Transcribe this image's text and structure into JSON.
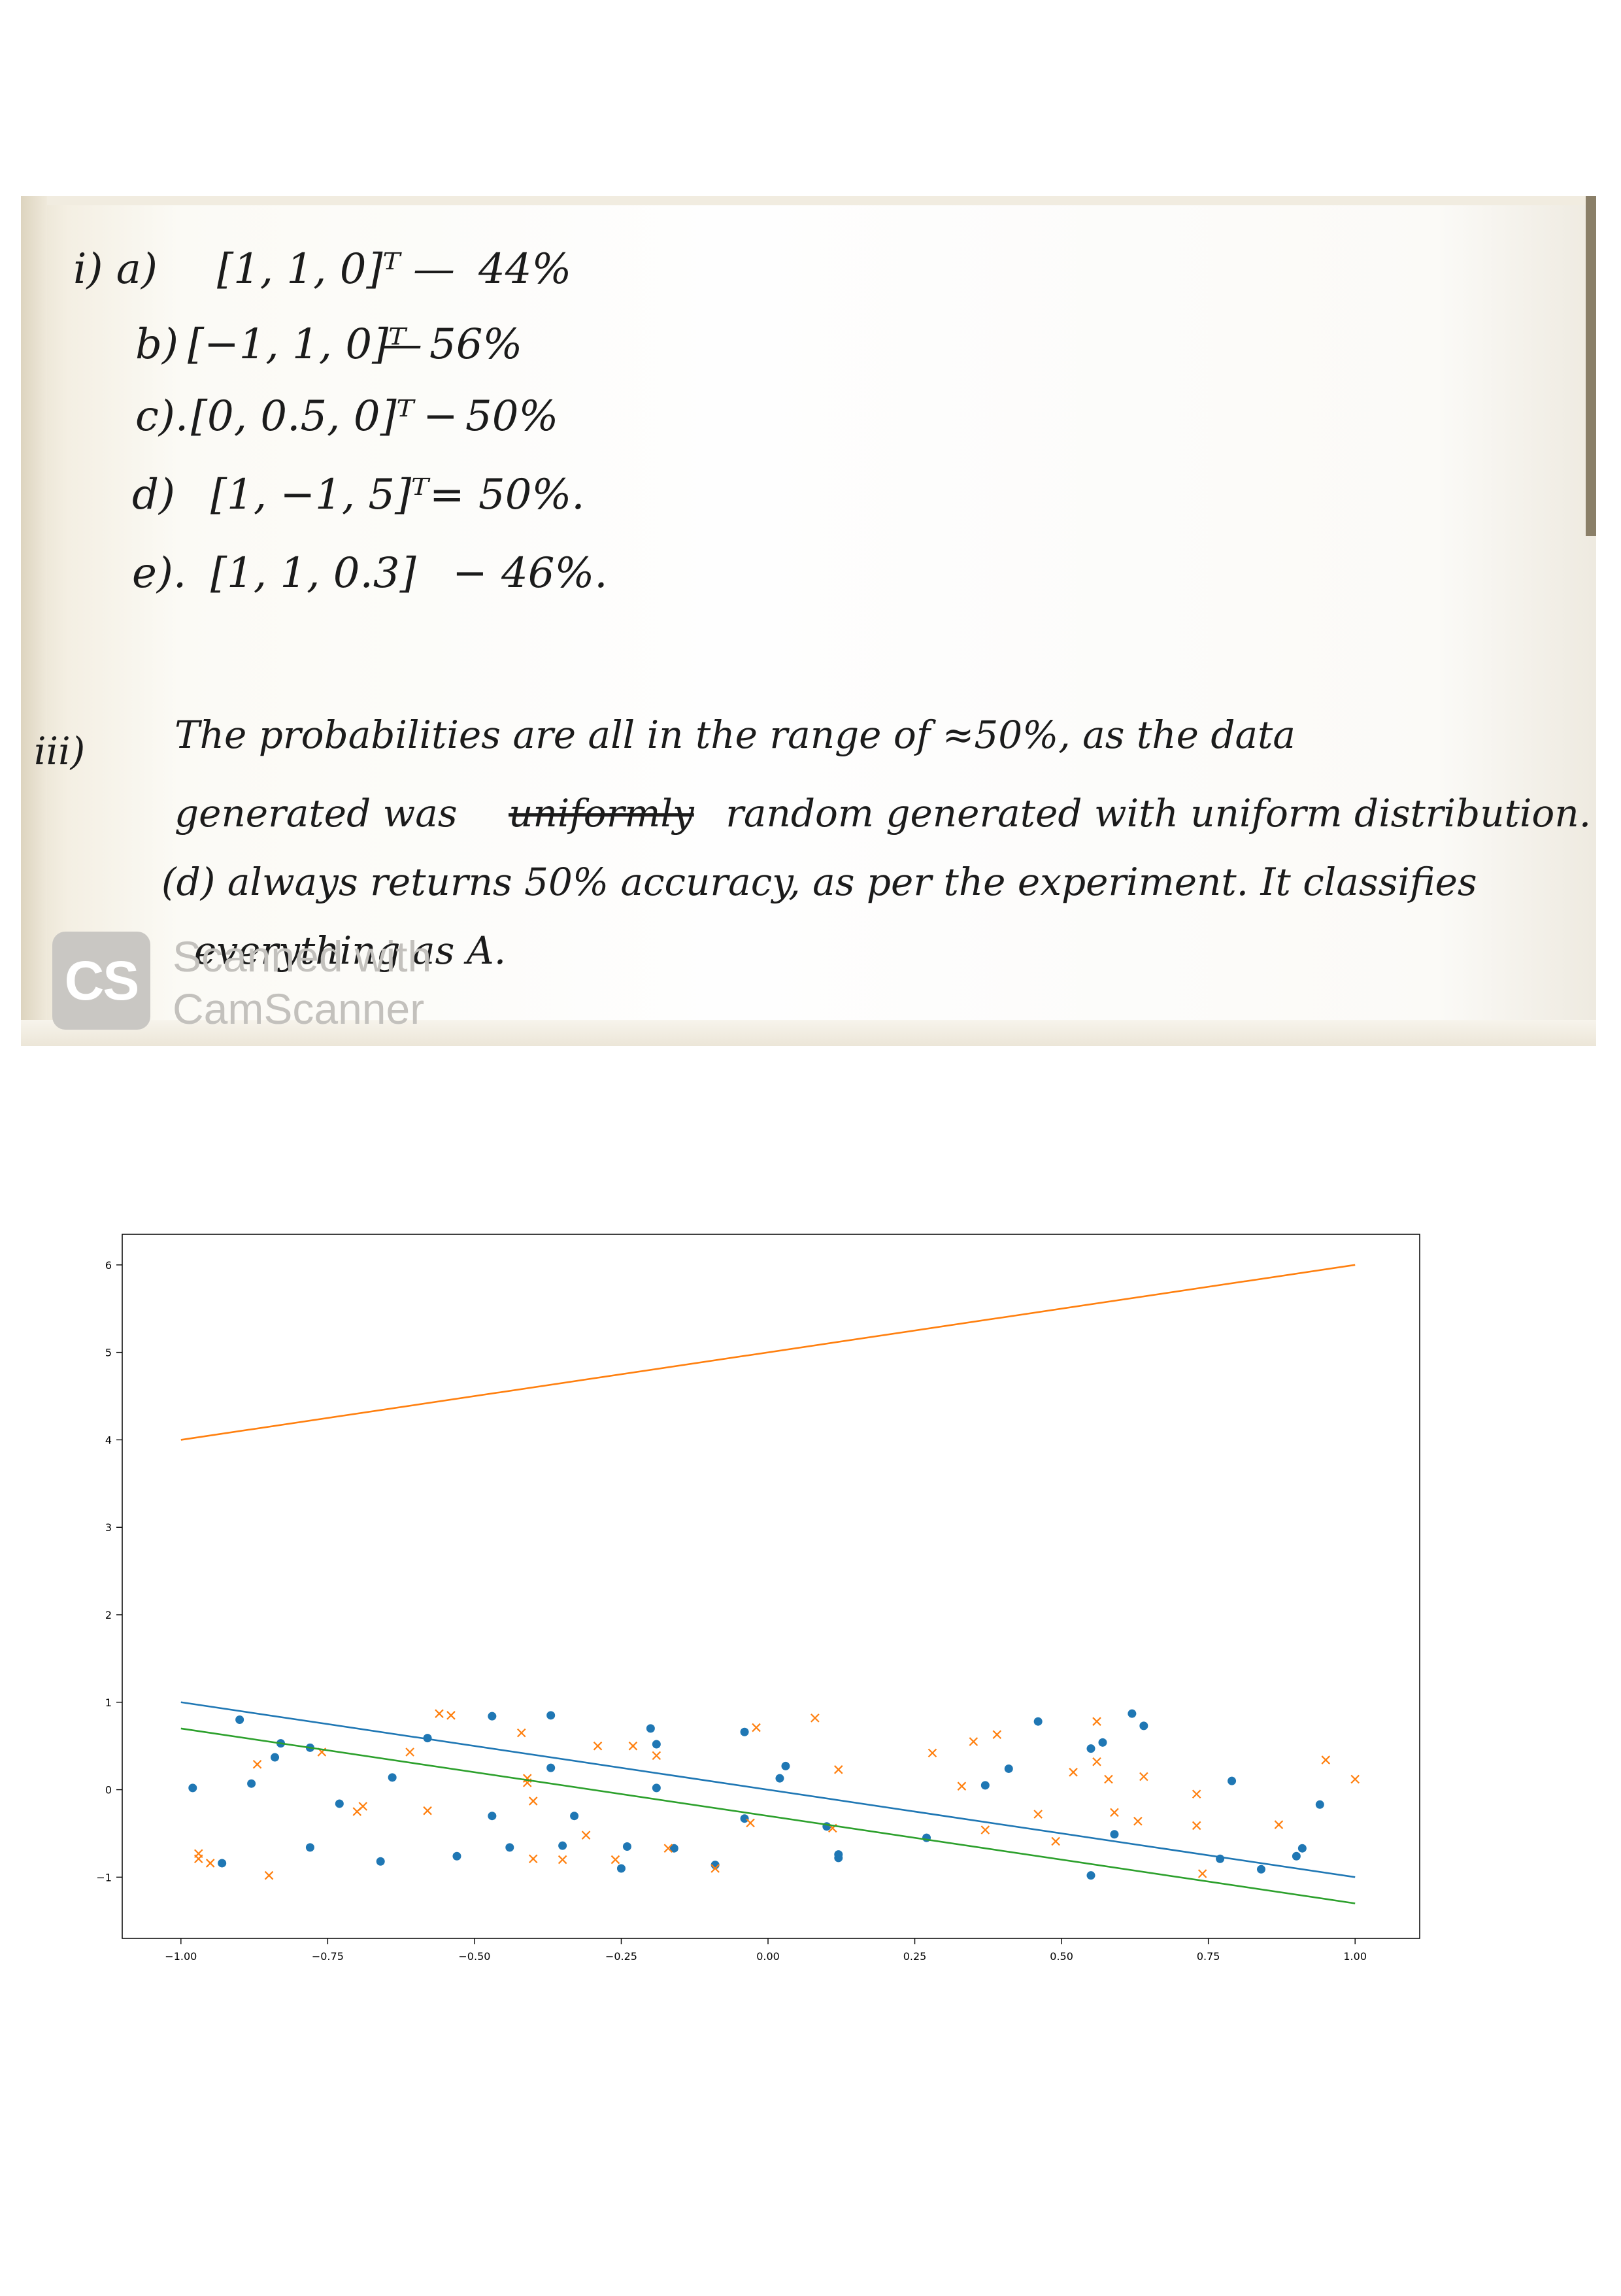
{
  "scan": {
    "answers_i": [
      {
        "label": "i) a)",
        "vector": "[1, 1, 0]ᵀ",
        "sep": "—",
        "value": "44%"
      },
      {
        "label": "b)",
        "vector": "[−1, 1, 0]ᵀ",
        "sep": "—",
        "value": "56%"
      },
      {
        "label": "c).",
        "vector": "[0, 0.5, 0]ᵀ",
        "sep": "−",
        "value": "50%"
      },
      {
        "label": "d)",
        "vector": "[1, −1, 5]ᵀ",
        "sep": "=",
        "value": "50%."
      },
      {
        "label": "e).",
        "vector": "[1, 1, 0.3]",
        "sep": "−",
        "value": "46%."
      }
    ],
    "part_iii": {
      "label": "iii)",
      "line1": "The probabilities are all in the range of ≈50%, as the data",
      "line2_before": "generated was",
      "line2_struck": "uniformly",
      "line2_after": "random generated with uniform distribution.",
      "line3": "(d) always returns 50% accuracy, as per the experiment. It classifies",
      "line4": "everything as A."
    },
    "watermark": {
      "logo_text": "CS",
      "line1": "Scanned with",
      "line2": "CamScanner"
    }
  },
  "chart_data": {
    "type": "scatter",
    "title": "",
    "xlabel": "",
    "ylabel": "",
    "xlim": [
      -1.1,
      1.11
    ],
    "ylim": [
      -1.7,
      6.35
    ],
    "xticks": [
      -1.0,
      -0.75,
      -0.5,
      -0.25,
      0.0,
      0.25,
      0.5,
      0.75,
      1.0
    ],
    "xtick_labels": [
      "−1.00",
      "−0.75",
      "−0.50",
      "−0.25",
      "0.00",
      "0.25",
      "0.50",
      "0.75",
      "1.00"
    ],
    "yticks": [
      -1,
      0,
      1,
      2,
      3,
      4,
      5,
      6
    ],
    "ytick_labels": [
      "−1",
      "0",
      "1",
      "2",
      "3",
      "4",
      "5",
      "6"
    ],
    "grid": false,
    "legend": "none",
    "lines": [
      {
        "color": "#ff7f0e",
        "x": [
          -1.0,
          1.0
        ],
        "y": [
          4.0,
          6.0
        ]
      },
      {
        "color": "#1f77b4",
        "x": [
          -1.0,
          1.0
        ],
        "y": [
          1.0,
          -1.0
        ]
      },
      {
        "color": "#2ca02c",
        "x": [
          -1.0,
          1.0
        ],
        "y": [
          0.7,
          -1.3
        ]
      }
    ],
    "series": [
      {
        "marker": "circle",
        "color": "#1f77b4",
        "points": [
          [
            -0.98,
            0.02
          ],
          [
            -0.9,
            0.8
          ],
          [
            -0.93,
            -0.84
          ],
          [
            -0.88,
            0.07
          ],
          [
            -0.84,
            0.37
          ],
          [
            -0.83,
            0.53
          ],
          [
            -0.78,
            -0.66
          ],
          [
            -0.78,
            0.48
          ],
          [
            -0.73,
            -0.16
          ],
          [
            -0.66,
            -0.82
          ],
          [
            -0.64,
            0.14
          ],
          [
            -0.58,
            0.59
          ],
          [
            -0.53,
            -0.76
          ],
          [
            -0.47,
            0.84
          ],
          [
            -0.47,
            -0.3
          ],
          [
            -0.44,
            -0.66
          ],
          [
            -0.37,
            0.85
          ],
          [
            -0.37,
            0.25
          ],
          [
            -0.35,
            -0.64
          ],
          [
            -0.33,
            -0.3
          ],
          [
            -0.25,
            -0.9
          ],
          [
            -0.24,
            -0.65
          ],
          [
            -0.2,
            0.7
          ],
          [
            -0.19,
            0.52
          ],
          [
            -0.19,
            0.02
          ],
          [
            -0.16,
            -0.67
          ],
          [
            -0.09,
            -0.86
          ],
          [
            -0.04,
            -0.33
          ],
          [
            -0.04,
            0.66
          ],
          [
            0.02,
            0.13
          ],
          [
            0.03,
            0.27
          ],
          [
            0.1,
            -0.42
          ],
          [
            0.12,
            -0.78
          ],
          [
            0.12,
            -0.74
          ],
          [
            0.27,
            -0.55
          ],
          [
            0.37,
            0.05
          ],
          [
            0.41,
            0.24
          ],
          [
            0.46,
            0.78
          ],
          [
            0.55,
            0.47
          ],
          [
            0.55,
            -0.98
          ],
          [
            0.57,
            0.54
          ],
          [
            0.59,
            -0.51
          ],
          [
            0.62,
            0.87
          ],
          [
            0.64,
            0.73
          ],
          [
            0.77,
            -0.79
          ],
          [
            0.79,
            0.1
          ],
          [
            0.84,
            -0.91
          ],
          [
            0.9,
            -0.76
          ],
          [
            0.91,
            -0.67
          ],
          [
            0.94,
            -0.17
          ]
        ]
      },
      {
        "marker": "x",
        "color": "#ff7f0e",
        "points": [
          [
            -0.97,
            -0.73
          ],
          [
            -0.97,
            -0.79
          ],
          [
            -0.95,
            -0.84
          ],
          [
            -0.87,
            0.29
          ],
          [
            -0.85,
            -0.98
          ],
          [
            -0.76,
            0.43
          ],
          [
            -0.7,
            -0.25
          ],
          [
            -0.69,
            -0.19
          ],
          [
            -0.61,
            0.43
          ],
          [
            -0.58,
            -0.24
          ],
          [
            -0.56,
            0.87
          ],
          [
            -0.54,
            0.85
          ],
          [
            -0.42,
            0.65
          ],
          [
            -0.41,
            0.13
          ],
          [
            -0.41,
            0.08
          ],
          [
            -0.4,
            -0.13
          ],
          [
            -0.4,
            -0.79
          ],
          [
            -0.35,
            -0.8
          ],
          [
            -0.31,
            -0.52
          ],
          [
            -0.29,
            0.5
          ],
          [
            -0.26,
            -0.8
          ],
          [
            -0.23,
            0.5
          ],
          [
            -0.19,
            0.39
          ],
          [
            -0.17,
            -0.67
          ],
          [
            -0.09,
            -0.9
          ],
          [
            -0.03,
            -0.38
          ],
          [
            -0.02,
            0.71
          ],
          [
            0.08,
            0.82
          ],
          [
            0.11,
            -0.44
          ],
          [
            0.12,
            0.23
          ],
          [
            0.28,
            0.42
          ],
          [
            0.33,
            0.04
          ],
          [
            0.35,
            0.55
          ],
          [
            0.37,
            -0.46
          ],
          [
            0.39,
            0.63
          ],
          [
            0.46,
            -0.28
          ],
          [
            0.49,
            -0.59
          ],
          [
            0.52,
            0.2
          ],
          [
            0.56,
            0.78
          ],
          [
            0.56,
            0.32
          ],
          [
            0.58,
            0.12
          ],
          [
            0.59,
            -0.26
          ],
          [
            0.63,
            -0.36
          ],
          [
            0.64,
            0.15
          ],
          [
            0.73,
            -0.05
          ],
          [
            0.73,
            -0.41
          ],
          [
            0.74,
            -0.96
          ],
          [
            0.87,
            -0.4
          ],
          [
            0.95,
            0.34
          ],
          [
            1.0,
            0.12
          ]
        ]
      }
    ]
  }
}
